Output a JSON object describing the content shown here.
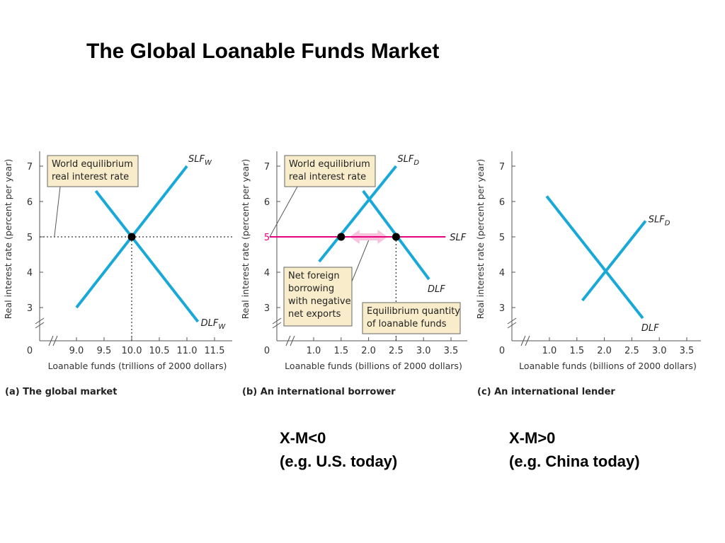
{
  "slide": {
    "title": "The Global Loanable Funds Market"
  },
  "notes": [
    {
      "line1": "X-M<0",
      "line2": "(e.g. U.S. today)"
    },
    {
      "line1": "X-M>0",
      "line2": "(e.g. China today)"
    }
  ],
  "colors": {
    "curve": "#19a9d8",
    "world_rate": "#e6007e",
    "callout_fill": "#f8eccb",
    "arrow_fill": "#f7c3dd"
  },
  "chart_data": [
    {
      "type": "line",
      "caption": "(a) The global market",
      "xlabel": "Loanable funds (trillions of 2000 dollars)",
      "ylabel": "Real interest rate (percent per year)",
      "origin_label": "0",
      "xticks": [
        "9.0",
        "9.5",
        "10.0",
        "10.5",
        "11.0",
        "11.5"
      ],
      "xtick_values": [
        9.0,
        9.5,
        10.0,
        10.5,
        11.0,
        11.5
      ],
      "xlim": [
        8.6,
        11.6
      ],
      "yticks": [
        "3",
        "4",
        "5",
        "6",
        "7"
      ],
      "ytick_values": [
        3,
        4,
        5,
        6,
        7
      ],
      "ylim": [
        2.3,
        7.4
      ],
      "axis_breaks": true,
      "series": [
        {
          "name": "SLFW",
          "label_main": "SLF",
          "label_sub": "W",
          "x": [
            9.0,
            11.0
          ],
          "y": [
            3.0,
            7.0
          ]
        },
        {
          "name": "DLFW",
          "label_main": "DLF",
          "label_sub": "W",
          "x": [
            9.35,
            11.2
          ],
          "y": [
            6.3,
            2.6
          ]
        }
      ],
      "points": [
        {
          "x": 10.0,
          "y": 5.0
        }
      ],
      "guides": {
        "horizontal_y": 5.0,
        "vertical_x": 10.0
      },
      "callouts": [
        {
          "lines": [
            "World equilibrium",
            "real interest rate"
          ],
          "target": {
            "x": 8.6,
            "y": 5.0
          }
        }
      ]
    },
    {
      "type": "line",
      "caption": "(b) An international borrower",
      "xlabel": "Loanable funds (billions of 2000 dollars)",
      "ylabel": "Real interest rate (percent per year)",
      "origin_label": "0",
      "xticks": [
        "1.0",
        "1.5",
        "2.0",
        "2.5",
        "3.0",
        "3.5"
      ],
      "xtick_values": [
        1.0,
        1.5,
        2.0,
        2.5,
        3.0,
        3.5
      ],
      "xlim": [
        0.2,
        3.6
      ],
      "yticks": [
        "3",
        "4",
        "5",
        "6",
        "7"
      ],
      "ytick_values": [
        3,
        4,
        5,
        6,
        7
      ],
      "ylim": [
        2.3,
        7.4
      ],
      "highlight_ytick": "5",
      "axis_breaks": true,
      "series": [
        {
          "name": "SLFD",
          "label_main": "SLF",
          "label_sub": "D",
          "x": [
            1.1,
            2.5
          ],
          "y": [
            4.3,
            7.0
          ]
        },
        {
          "name": "DLF",
          "label_main": "DLF",
          "label_sub": "",
          "x": [
            1.9,
            3.1
          ],
          "y": [
            6.3,
            3.8
          ]
        },
        {
          "name": "SLF",
          "label_main": "SLF",
          "label_sub": "",
          "x": [
            0.2,
            3.4
          ],
          "y": [
            5.0,
            5.0
          ]
        }
      ],
      "points": [
        {
          "x": 1.5,
          "y": 5.0
        },
        {
          "x": 2.5,
          "y": 5.0
        }
      ],
      "guides": {
        "vertical_x": 2.5
      },
      "callouts": [
        {
          "lines": [
            "World equilibrium",
            "real interest rate"
          ],
          "target": {
            "x": 0.2,
            "y": 5.0
          }
        },
        {
          "lines": [
            "Net foreign",
            "borrowing",
            "with negative",
            "net exports"
          ],
          "target": {
            "x": 2.0,
            "y": 4.9
          }
        },
        {
          "lines": [
            "Equilibrium quantity",
            "of loanable funds"
          ],
          "target": {
            "x": 2.5,
            "y": 2.8
          }
        }
      ]
    },
    {
      "type": "line",
      "caption": "(c) An international lender",
      "xlabel": "Loanable funds (billions of 2000 dollars)",
      "ylabel": "Real interest rate (percent per year)",
      "origin_label": "0",
      "xticks": [
        "1.0",
        "1.5",
        "2.0",
        "2.5",
        "3.0",
        "3.5"
      ],
      "xtick_values": [
        1.0,
        1.5,
        2.0,
        2.5,
        3.0,
        3.5
      ],
      "xlim": [
        0.2,
        3.6
      ],
      "yticks": [
        "3",
        "4",
        "5",
        "6",
        "7"
      ],
      "ytick_values": [
        3,
        4,
        5,
        6,
        7
      ],
      "ylim": [
        2.3,
        7.4
      ],
      "axis_breaks": true,
      "series": [
        {
          "name": "SLFD",
          "label_main": "SLF",
          "label_sub": "D",
          "x": [
            1.6,
            2.75
          ],
          "y": [
            3.2,
            5.45
          ]
        },
        {
          "name": "DLF",
          "label_main": "DLF",
          "label_sub": "",
          "x": [
            0.95,
            2.7
          ],
          "y": [
            6.15,
            2.7
          ]
        }
      ],
      "points": [],
      "guides": {},
      "callouts": []
    }
  ]
}
